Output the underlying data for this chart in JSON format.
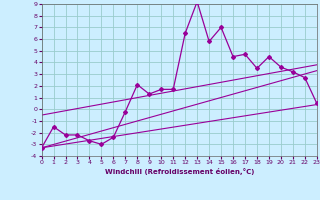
{
  "xlabel": "Windchill (Refroidissement éolien,°C)",
  "bg_color": "#cceeff",
  "grid_color": "#99cccc",
  "line_color": "#990099",
  "xlim": [
    0,
    23
  ],
  "ylim": [
    -4,
    9
  ],
  "xticks": [
    0,
    1,
    2,
    3,
    4,
    5,
    6,
    7,
    8,
    9,
    10,
    11,
    12,
    13,
    14,
    15,
    16,
    17,
    18,
    19,
    20,
    21,
    22,
    23
  ],
  "yticks": [
    -4,
    -3,
    -2,
    -1,
    0,
    1,
    2,
    3,
    4,
    5,
    6,
    7,
    8,
    9
  ],
  "line1_x": [
    0,
    1,
    2,
    3,
    4,
    5,
    6,
    7,
    8,
    9,
    10,
    11,
    12,
    13,
    14,
    15,
    16,
    17,
    18,
    19,
    20,
    21,
    22,
    23
  ],
  "line1_y": [
    -3.3,
    -1.5,
    -2.2,
    -2.2,
    -2.7,
    -3.0,
    -2.4,
    -0.2,
    2.1,
    1.3,
    1.7,
    1.7,
    6.5,
    9.2,
    5.8,
    7.0,
    4.5,
    4.7,
    3.5,
    4.5,
    3.6,
    3.2,
    2.7,
    0.5
  ],
  "line2_x": [
    0,
    23
  ],
  "line2_y": [
    -3.3,
    3.3
  ],
  "line3_x": [
    0,
    23
  ],
  "line3_y": [
    -3.3,
    0.4
  ],
  "line4_x": [
    0,
    23
  ],
  "line4_y": [
    -0.5,
    3.8
  ]
}
